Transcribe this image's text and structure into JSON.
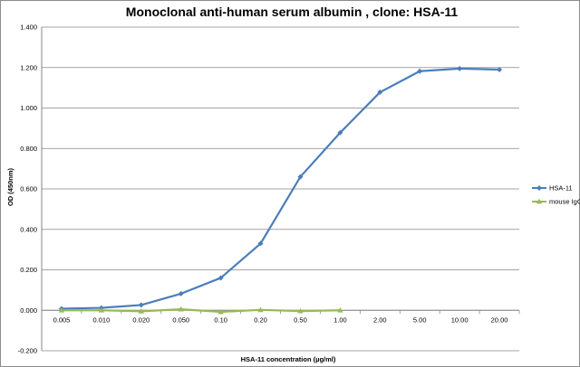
{
  "chart_data": {
    "type": "line",
    "title": "Monoclonal anti-human serum albumin ,  clone: HSA-11",
    "xlabel": "HSA-11 concentration  (µg/ml)",
    "ylabel": "OD (450nm)",
    "categories": [
      "0.005",
      "0.010",
      "0.020",
      "0.050",
      "0.10",
      "0.20",
      "0.50",
      "1.00",
      "2.00",
      "5.00",
      "10.00",
      "20.00"
    ],
    "ylim": [
      -0.2,
      1.4
    ],
    "ytick_step": 0.2,
    "ytick_labels": [
      "-0.200",
      "0.000",
      "0.200",
      "0.400",
      "0.600",
      "0.800",
      "1.000",
      "1.200",
      "1.400"
    ],
    "grid": true,
    "legend_position": "right",
    "series": [
      {
        "name": "HSA-11",
        "color": "#4a7ebb",
        "marker": "diamond",
        "values": [
          0.008,
          0.012,
          0.026,
          0.082,
          0.16,
          0.33,
          0.66,
          0.878,
          1.078,
          1.182,
          1.195,
          1.19
        ]
      },
      {
        "name": "mouse IgG",
        "color": "#98b954",
        "marker": "triangle",
        "values": [
          0.0,
          0.0,
          -0.005,
          0.005,
          -0.008,
          0.002,
          -0.004,
          0.0,
          null,
          null,
          null,
          null
        ]
      }
    ]
  }
}
